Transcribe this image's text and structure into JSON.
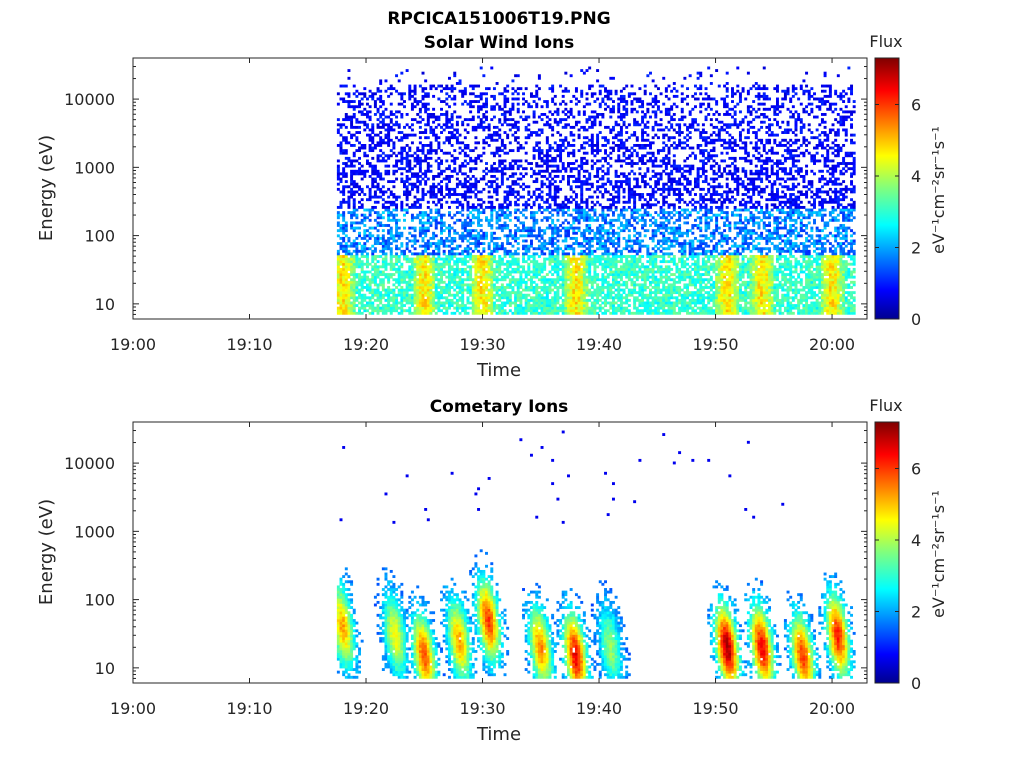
{
  "figure_title": "RPCICA151006T19.PNG",
  "colorbar": {
    "title": "Flux",
    "units": "eV⁻¹cm⁻²sr⁻¹s⁻¹",
    "ticks": [
      "0",
      "2",
      "4",
      "6"
    ],
    "range": [
      0,
      7.3
    ],
    "colormap": "jet"
  },
  "chart_data": [
    {
      "type": "heatmap",
      "title": "Solar Wind Ions",
      "xlabel": "Time",
      "ylabel": "Energy (eV)",
      "y_scale": "log",
      "ylim": [
        6,
        40000
      ],
      "xlim": [
        "19:00",
        "20:03"
      ],
      "x_tick_labels": [
        "19:00",
        "19:10",
        "19:20",
        "19:30",
        "19:40",
        "19:50",
        "20:00"
      ],
      "y_tick_labels": [
        "10",
        "100",
        "1000",
        "10000"
      ],
      "data_start": "19:17.5",
      "data_end": "20:02",
      "flux_bursts_low_energy": [
        "19:18",
        "19:25",
        "19:30",
        "19:38",
        "19:51",
        "19:54",
        "20:00"
      ],
      "description_levels": {
        "high_energy_flux": 0.8,
        "low_energy_flux": 3.5,
        "peak_flux": 4.8
      }
    },
    {
      "type": "heatmap",
      "title": "Cometary Ions",
      "xlabel": "Time",
      "ylabel": "Energy (eV)",
      "y_scale": "log",
      "ylim": [
        6,
        40000
      ],
      "xlim": [
        "19:00",
        "20:03"
      ],
      "x_tick_labels": [
        "19:00",
        "19:10",
        "19:20",
        "19:30",
        "19:40",
        "19:50",
        "20:00"
      ],
      "y_tick_labels": [
        "10",
        "100",
        "1000",
        "10000"
      ],
      "data_start": "19:17.5",
      "data_end": "20:02",
      "flux_bursts": [
        {
          "time": "19:18",
          "peak_energy": 40,
          "peak_flux": 5.2
        },
        {
          "time": "19:22.5",
          "peak_energy": 30,
          "peak_flux": 4.5
        },
        {
          "time": "19:25",
          "peak_energy": 15,
          "peak_flux": 5.8
        },
        {
          "time": "19:28",
          "peak_energy": 25,
          "peak_flux": 5.2
        },
        {
          "time": "19:30.5",
          "peak_energy": 50,
          "peak_flux": 6.0
        },
        {
          "time": "19:35",
          "peak_energy": 20,
          "peak_flux": 5.4
        },
        {
          "time": "19:38",
          "peak_energy": 15,
          "peak_flux": 6.5
        },
        {
          "time": "19:41",
          "peak_energy": 20,
          "peak_flux": 3.8
        },
        {
          "time": "19:51",
          "peak_energy": 20,
          "peak_flux": 7.0
        },
        {
          "time": "19:54",
          "peak_energy": 20,
          "peak_flux": 6.5
        },
        {
          "time": "19:57.5",
          "peak_energy": 15,
          "peak_flux": 6.0
        },
        {
          "time": "20:00.5",
          "peak_energy": 30,
          "peak_flux": 6.2
        }
      ]
    }
  ]
}
